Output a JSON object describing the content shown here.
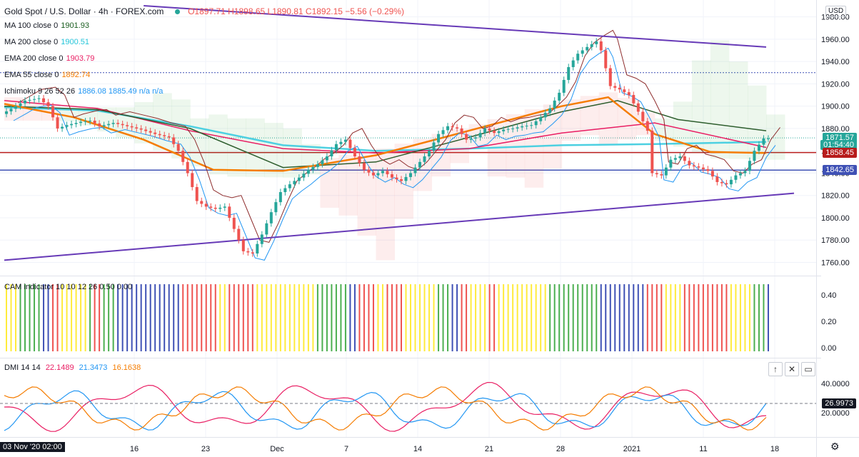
{
  "header": {
    "title": "Gold Spot / U.S. Dollar · 4h · FOREX.com",
    "ohlc": "O1897.71 H1898.65 L1890.81 C1892.15 −5.56 (−0.29%)",
    "currency": "USD"
  },
  "legend": [
    {
      "label": "MA 100 close 0",
      "value": "1901.93",
      "color": "#1b5e20"
    },
    {
      "label": "MA 200 close 0",
      "value": "1900.51",
      "color": "#26c6da"
    },
    {
      "label": "EMA 200 close 0",
      "value": "1903.79",
      "color": "#e91e63"
    },
    {
      "label": "EMA 55 close 0",
      "value": "1892.74",
      "color": "#f57c00"
    },
    {
      "label": "Ichimoku 9 26 52 26",
      "value": "1886.08  1885.49  n/a  n/a",
      "color": "#2196f3"
    }
  ],
  "price_badges": [
    {
      "text": "1871.57",
      "color": "#26a69a",
      "price": 1871.57
    },
    {
      "text": "01:54:40",
      "color": "#26a69a",
      "price": 1865.5
    },
    {
      "text": "1858.45",
      "color": "#b71c1c",
      "price": 1858.45
    },
    {
      "text": "1842.65",
      "color": "#3f51b5",
      "price": 1842.65
    }
  ],
  "cam": {
    "label": "CAM indicator 10 10 12 26 0.50 0.00",
    "ticks": [
      "0.40",
      "0.20",
      "0.00"
    ]
  },
  "dmi": {
    "label": "DMI 14 14",
    "v1": "22.1489",
    "v2": "21.3473",
    "v3": "16.1638",
    "badge": "26.9973",
    "ticks": [
      "40.0000",
      "20.0000"
    ]
  },
  "x_axis": {
    "start_label": "03 Nov '20  02:00",
    "labels": [
      "16",
      "23",
      "Dec",
      "7",
      "14",
      "21",
      "28",
      "2021",
      "11",
      "18"
    ]
  },
  "chart_data": {
    "type": "candlestick",
    "title": "Gold Spot / U.S. Dollar · 4h · FOREX.com",
    "y_ticks": [
      1760,
      1780,
      1800,
      1820,
      1840,
      1860,
      1880,
      1900,
      1920,
      1940,
      1960,
      1980
    ],
    "ylim": [
      1752,
      1990
    ],
    "close_path": [
      [
        0,
        1893
      ],
      [
        3,
        1900
      ],
      [
        5,
        1905
      ],
      [
        8,
        1907
      ],
      [
        10,
        1900
      ],
      [
        12,
        1880
      ],
      [
        14,
        1883
      ],
      [
        17,
        1886
      ],
      [
        19,
        1887
      ],
      [
        21,
        1882
      ],
      [
        24,
        1885
      ],
      [
        27,
        1882
      ],
      [
        30,
        1879
      ],
      [
        33,
        1875
      ],
      [
        36,
        1872
      ],
      [
        38,
        1860
      ],
      [
        40,
        1840
      ],
      [
        42,
        1815
      ],
      [
        44,
        1810
      ],
      [
        46,
        1808
      ],
      [
        48,
        1810
      ],
      [
        50,
        1790
      ],
      [
        52,
        1770
      ],
      [
        54,
        1768
      ],
      [
        56,
        1785
      ],
      [
        58,
        1805
      ],
      [
        60,
        1823
      ],
      [
        62,
        1830
      ],
      [
        64,
        1836
      ],
      [
        66,
        1843
      ],
      [
        68,
        1848
      ],
      [
        70,
        1855
      ],
      [
        72,
        1866
      ],
      [
        74,
        1870
      ],
      [
        76,
        1855
      ],
      [
        78,
        1843
      ],
      [
        80,
        1838
      ],
      [
        82,
        1842
      ],
      [
        84,
        1836
      ],
      [
        86,
        1833
      ],
      [
        88,
        1840
      ],
      [
        90,
        1850
      ],
      [
        92,
        1860
      ],
      [
        94,
        1875
      ],
      [
        96,
        1882
      ],
      [
        98,
        1880
      ],
      [
        100,
        1870
      ],
      [
        102,
        1872
      ],
      [
        104,
        1880
      ],
      [
        106,
        1876
      ],
      [
        108,
        1879
      ],
      [
        110,
        1880
      ],
      [
        112,
        1882
      ],
      [
        114,
        1883
      ],
      [
        116,
        1890
      ],
      [
        118,
        1898
      ],
      [
        120,
        1912
      ],
      [
        122,
        1935
      ],
      [
        124,
        1947
      ],
      [
        126,
        1953
      ],
      [
        128,
        1958
      ],
      [
        129,
        1950
      ],
      [
        131,
        1918
      ],
      [
        133,
        1915
      ],
      [
        135,
        1910
      ],
      [
        137,
        1895
      ],
      [
        139,
        1878
      ],
      [
        140,
        1840
      ],
      [
        142,
        1838
      ],
      [
        144,
        1852
      ],
      [
        146,
        1855
      ],
      [
        148,
        1847
      ],
      [
        150,
        1845
      ],
      [
        152,
        1842
      ],
      [
        154,
        1832
      ],
      [
        156,
        1830
      ],
      [
        158,
        1838
      ],
      [
        160,
        1842
      ],
      [
        162,
        1860
      ],
      [
        164,
        1871
      ]
    ],
    "ma100": [
      [
        0,
        1900
      ],
      [
        20,
        1897
      ],
      [
        40,
        1880
      ],
      [
        60,
        1845
      ],
      [
        80,
        1850
      ],
      [
        100,
        1872
      ],
      [
        120,
        1895
      ],
      [
        132,
        1905
      ],
      [
        145,
        1888
      ],
      [
        164,
        1878
      ]
    ],
    "ma200": [
      [
        0,
        1899
      ],
      [
        20,
        1896
      ],
      [
        40,
        1882
      ],
      [
        60,
        1865
      ],
      [
        80,
        1860
      ],
      [
        100,
        1862
      ],
      [
        120,
        1865
      ],
      [
        140,
        1866
      ],
      [
        164,
        1868
      ]
    ],
    "ema200": [
      [
        0,
        1905
      ],
      [
        20,
        1898
      ],
      [
        40,
        1878
      ],
      [
        60,
        1862
      ],
      [
        80,
        1858
      ],
      [
        100,
        1862
      ],
      [
        120,
        1876
      ],
      [
        140,
        1885
      ],
      [
        164,
        1863
      ]
    ],
    "ema55": [
      [
        0,
        1902
      ],
      [
        15,
        1890
      ],
      [
        30,
        1870
      ],
      [
        45,
        1843
      ],
      [
        60,
        1842
      ],
      [
        80,
        1856
      ],
      [
        100,
        1878
      ],
      [
        120,
        1900
      ],
      [
        130,
        1908
      ],
      [
        140,
        1875
      ],
      [
        152,
        1859
      ],
      [
        164,
        1858
      ]
    ],
    "trendlines": [
      {
        "from": [
          0,
          1762
        ],
        "to": [
          170,
          1822
        ]
      },
      {
        "from": [
          30,
          1990
        ],
        "to": [
          164,
          1953
        ]
      }
    ],
    "hlines": [
      1858.45,
      1842.65,
      1930
    ]
  }
}
